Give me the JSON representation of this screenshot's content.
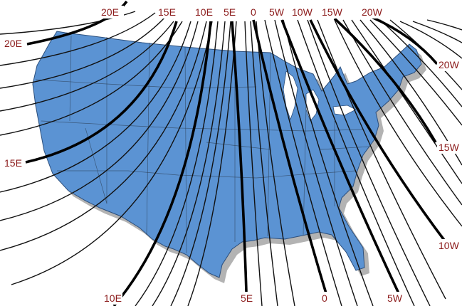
{
  "map": {
    "colors": {
      "land": "#5b93d3",
      "land_edge": "#2c4f7c",
      "shadow": "#9a9a9a",
      "isogonic_line": "#000000",
      "label": "#8b1a1a",
      "background": "#ffffff"
    },
    "labels": {
      "top_20e": "20E",
      "top_15e": "15E",
      "top_10e": "10E",
      "top_5e": "5E",
      "top_0": "0",
      "top_5w": "5W",
      "top_10w": "10W",
      "top_15w": "15W",
      "top_20w": "20W",
      "left_20e": "20E",
      "left_15e": "15E",
      "right_20w": "20W",
      "right_15w": "15W",
      "right_10w": "10W",
      "bottom_10e": "10E",
      "bottom_5e": "5E",
      "bottom_0": "0",
      "bottom_5w": "5W"
    }
  }
}
